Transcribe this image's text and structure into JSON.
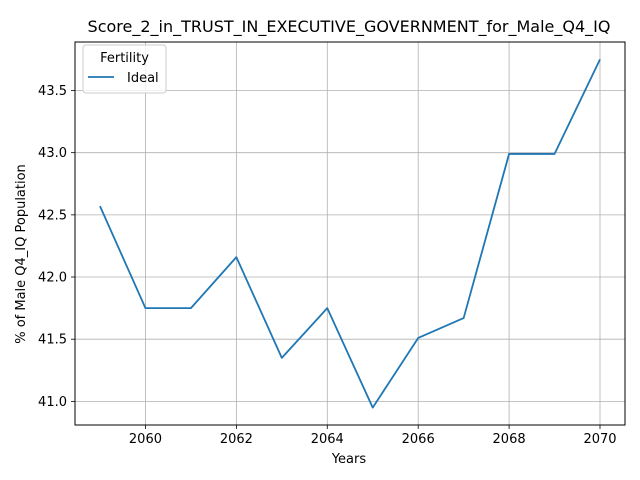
{
  "chart_data": {
    "type": "line",
    "title": "Score_2_in_TRUST_IN_EXECUTIVE_GOVERNMENT_for_Male_Q4_IQ",
    "xlabel": "Years",
    "ylabel": "% of Male Q4_IQ Population",
    "xlim": [
      2058.45,
      2070.55
    ],
    "ylim": [
      40.81,
      43.89
    ],
    "xticks": [
      2060,
      2062,
      2064,
      2066,
      2068,
      2070
    ],
    "yticks": [
      41.0,
      41.5,
      42.0,
      42.5,
      43.0,
      43.5
    ],
    "ytick_labels": [
      "41.0",
      "41.5",
      "42.0",
      "42.5",
      "43.0",
      "43.5"
    ],
    "grid": true,
    "legend": {
      "title": "Fertility",
      "placement": "top-left"
    },
    "series": [
      {
        "name": "Ideal",
        "color": "#1f77b4",
        "x": [
          2059,
          2060,
          2061,
          2062,
          2063,
          2064,
          2065,
          2066,
          2067,
          2068,
          2069,
          2070
        ],
        "y": [
          42.57,
          41.75,
          41.75,
          42.16,
          41.35,
          41.75,
          40.95,
          41.51,
          41.67,
          42.99,
          42.99,
          43.75
        ]
      }
    ]
  }
}
